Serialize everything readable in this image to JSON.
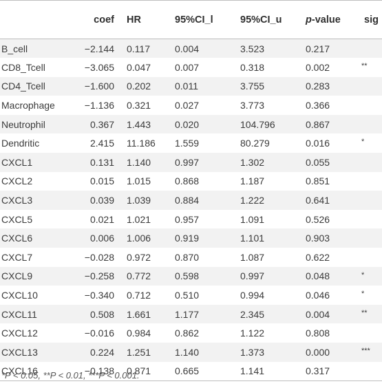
{
  "table": {
    "headers": {
      "name": "",
      "coef": "coef",
      "hr": "HR",
      "ci_l": "95%CI_l",
      "ci_u": "95%CI_u",
      "p_italic": "p",
      "p_rest": "-value",
      "sig": "sig"
    },
    "rows": [
      {
        "name": "B_cell",
        "coef": "−2.144",
        "hr": "0.117",
        "ci_l": "0.004",
        "ci_u": "3.523",
        "p": "0.217",
        "sig": ""
      },
      {
        "name": "CD8_Tcell",
        "coef": "−3.065",
        "hr": "0.047",
        "ci_l": "0.007",
        "ci_u": "0.318",
        "p": "0.002",
        "sig": "**"
      },
      {
        "name": "CD4_Tcell",
        "coef": "−1.600",
        "hr": "0.202",
        "ci_l": "0.011",
        "ci_u": "3.755",
        "p": "0.283",
        "sig": ""
      },
      {
        "name": "Macrophage",
        "coef": "−1.136",
        "hr": "0.321",
        "ci_l": "0.027",
        "ci_u": "3.773",
        "p": "0.366",
        "sig": ""
      },
      {
        "name": "Neutrophil",
        "coef": "0.367",
        "hr": "1.443",
        "ci_l": "0.020",
        "ci_u": "104.796",
        "p": "0.867",
        "sig": ""
      },
      {
        "name": "Dendritic",
        "coef": "2.415",
        "hr": "11.186",
        "ci_l": "1.559",
        "ci_u": "80.279",
        "p": "0.016",
        "sig": "*"
      },
      {
        "name": "CXCL1",
        "coef": "0.131",
        "hr": "1.140",
        "ci_l": "0.997",
        "ci_u": "1.302",
        "p": "0.055",
        "sig": ""
      },
      {
        "name": "CXCL2",
        "coef": "0.015",
        "hr": "1.015",
        "ci_l": "0.868",
        "ci_u": "1.187",
        "p": "0.851",
        "sig": ""
      },
      {
        "name": "CXCL3",
        "coef": "0.039",
        "hr": "1.039",
        "ci_l": "0.884",
        "ci_u": "1.222",
        "p": "0.641",
        "sig": ""
      },
      {
        "name": "CXCL5",
        "coef": "0.021",
        "hr": "1.021",
        "ci_l": "0.957",
        "ci_u": "1.091",
        "p": "0.526",
        "sig": ""
      },
      {
        "name": "CXCL6",
        "coef": "0.006",
        "hr": "1.006",
        "ci_l": "0.919",
        "ci_u": "1.101",
        "p": "0.903",
        "sig": ""
      },
      {
        "name": "CXCL7",
        "coef": "−0.028",
        "hr": "0.972",
        "ci_l": "0.870",
        "ci_u": "1.087",
        "p": "0.622",
        "sig": ""
      },
      {
        "name": "CXCL9",
        "coef": "−0.258",
        "hr": "0.772",
        "ci_l": "0.598",
        "ci_u": "0.997",
        "p": "0.048",
        "sig": "*"
      },
      {
        "name": "CXCL10",
        "coef": "−0.340",
        "hr": "0.712",
        "ci_l": "0.510",
        "ci_u": "0.994",
        "p": "0.046",
        "sig": "*"
      },
      {
        "name": "CXCL11",
        "coef": "0.508",
        "hr": "1.661",
        "ci_l": "1.177",
        "ci_u": "2.345",
        "p": "0.004",
        "sig": "**"
      },
      {
        "name": "CXCL12",
        "coef": "−0.016",
        "hr": "0.984",
        "ci_l": "0.862",
        "ci_u": "1.122",
        "p": "0.808",
        "sig": ""
      },
      {
        "name": "CXCL13",
        "coef": "0.224",
        "hr": "1.251",
        "ci_l": "1.140",
        "ci_u": "1.373",
        "p": "0.000",
        "sig": "***"
      },
      {
        "name": "CXCL16",
        "coef": "−0.138",
        "hr": "0.871",
        "ci_l": "0.665",
        "ci_u": "1.141",
        "p": "0.317",
        "sig": ""
      }
    ]
  },
  "footnote": "*P < 0.05, **P < 0.01, ***P < 0.001."
}
